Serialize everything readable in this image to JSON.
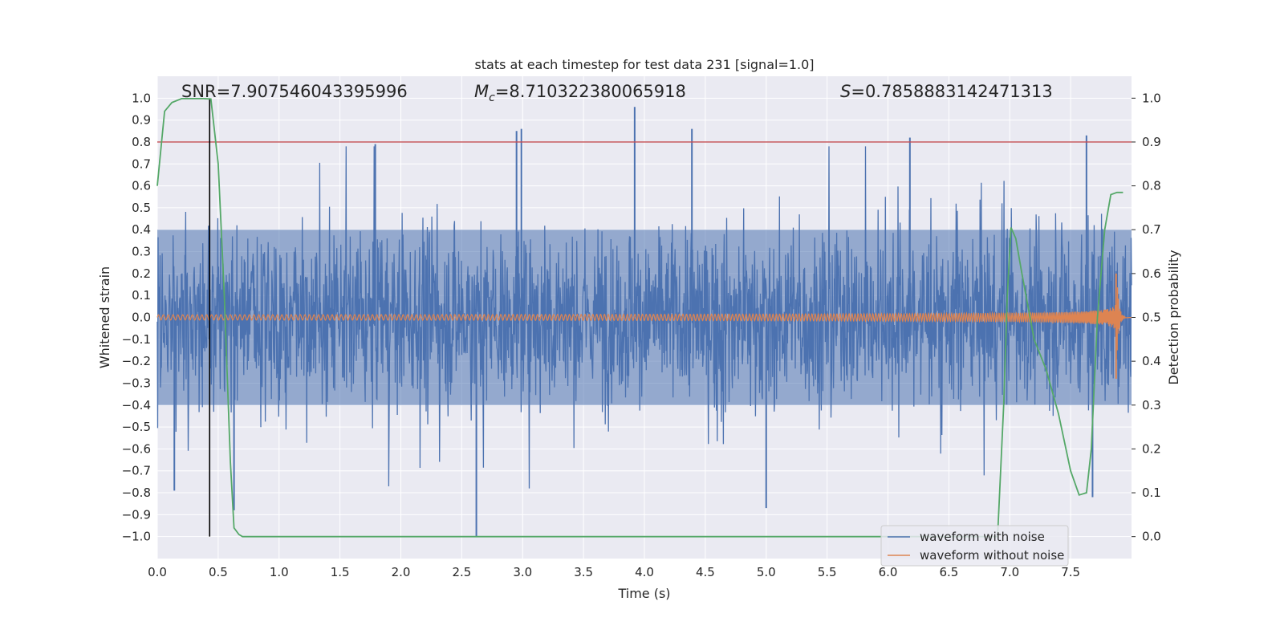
{
  "chart_data": {
    "type": "line",
    "title": "stats at each timestep for test data 231 [signal=1.0]",
    "xlabel": "Time (s)",
    "ylabel": "Whitened strain",
    "y2label": "Detection probability",
    "xlim": [
      0.0,
      8.0
    ],
    "ylim": [
      -1.1,
      1.1
    ],
    "y2lim": [
      -0.05,
      1.05
    ],
    "xticks": [
      0.0,
      0.5,
      1.0,
      1.5,
      2.0,
      2.5,
      3.0,
      3.5,
      4.0,
      4.5,
      5.0,
      5.5,
      6.0,
      6.5,
      7.0,
      7.5
    ],
    "xtick_labels": [
      "0.0",
      "0.5",
      "1.0",
      "1.5",
      "2.0",
      "2.5",
      "3.0",
      "3.5",
      "4.0",
      "4.5",
      "5.0",
      "5.5",
      "6.0",
      "6.5",
      "7.0",
      "7.5"
    ],
    "yticks": [
      -1.0,
      -0.9,
      -0.8,
      -0.7,
      -0.6,
      -0.5,
      -0.4,
      -0.3,
      -0.2,
      -0.1,
      0.0,
      0.1,
      0.2,
      0.3,
      0.4,
      0.5,
      0.6,
      0.7,
      0.8,
      0.9,
      1.0
    ],
    "ytick_labels": [
      "−1.0",
      "−0.9",
      "−0.8",
      "−0.7",
      "−0.6",
      "−0.5",
      "−0.4",
      "−0.3",
      "−0.2",
      "−0.1",
      "0.0",
      "0.1",
      "0.2",
      "0.3",
      "0.4",
      "0.5",
      "0.6",
      "0.7",
      "0.8",
      "0.9",
      "1.0"
    ],
    "y2ticks": [
      0.0,
      0.1,
      0.2,
      0.3,
      0.4,
      0.5,
      0.6,
      0.7,
      0.8,
      0.9,
      1.0
    ],
    "y2tick_labels": [
      "0.0",
      "0.1",
      "0.2",
      "0.3",
      "0.4",
      "0.5",
      "0.6",
      "0.7",
      "0.8",
      "0.9",
      "1.0"
    ],
    "annotations": {
      "snr": "SNR=7.907546043395996",
      "mc_symbol": "M",
      "mc_sub": "c",
      "mc_value": "=8.710322380065918",
      "s_symbol": "S",
      "s_value": "=0.7858883142471313"
    },
    "threshold_line": {
      "axis": "right",
      "value": 0.9,
      "color": "#c44e52"
    },
    "merger_marker": {
      "x": 0.43,
      "y_range": [
        -1.0,
        1.0
      ],
      "color": "#000000"
    },
    "noisy_waveform": {
      "name": "waveform with noise",
      "color": "#4c72b0",
      "duration": 8.0,
      "samples": 8000,
      "envelope_abs": 0.4,
      "min": -1.0,
      "max": 0.96,
      "peaks": [
        {
          "x": 3.92,
          "y": 0.96
        },
        {
          "x": 2.95,
          "y": 0.85
        },
        {
          "x": 2.99,
          "y": 0.86
        },
        {
          "x": 4.39,
          "y": 0.86
        },
        {
          "x": 7.63,
          "y": 0.83
        },
        {
          "x": 6.18,
          "y": 0.82
        },
        {
          "x": 1.79,
          "y": 0.79
        },
        {
          "x": 2.62,
          "y": -1.0
        },
        {
          "x": 5.0,
          "y": -0.87
        },
        {
          "x": 0.14,
          "y": -0.79
        },
        {
          "x": 0.63,
          "y": -0.88
        },
        {
          "x": 7.68,
          "y": -0.82
        }
      ]
    },
    "clean_waveform": {
      "name": "waveform without noise",
      "color": "#dd8452",
      "f_start": 25,
      "t_coalescence": 7.88,
      "amplitude_start": 0.012,
      "amplitude_peak": 0.2,
      "ringdown_end": 7.95
    },
    "detection_probability": {
      "name": "detection probability",
      "axis": "right",
      "color": "#55a868",
      "x": [
        0.0,
        0.06,
        0.12,
        0.2,
        0.3,
        0.38,
        0.44,
        0.5,
        0.55,
        0.6,
        0.63,
        0.67,
        0.7,
        0.8,
        6.5,
        6.9,
        6.95,
        6.98,
        7.01,
        7.05,
        7.1,
        7.2,
        7.3,
        7.4,
        7.5,
        7.57,
        7.63,
        7.67,
        7.72,
        7.78,
        7.83,
        7.88,
        7.93
      ],
      "y": [
        0.8,
        0.97,
        0.99,
        0.999,
        0.999,
        0.999,
        0.998,
        0.85,
        0.55,
        0.17,
        0.02,
        0.005,
        0.0,
        0.0,
        0.0,
        0.0,
        0.3,
        0.55,
        0.705,
        0.68,
        0.6,
        0.45,
        0.38,
        0.28,
        0.15,
        0.095,
        0.1,
        0.2,
        0.5,
        0.7,
        0.78,
        0.785,
        0.785
      ]
    },
    "legend": {
      "location": "lower-right",
      "entries": [
        {
          "label": "waveform with noise",
          "color": "#4c72b0"
        },
        {
          "label": "waveform without noise",
          "color": "#dd8452"
        }
      ]
    },
    "grid": true,
    "style": "seaborn-darkgrid"
  }
}
